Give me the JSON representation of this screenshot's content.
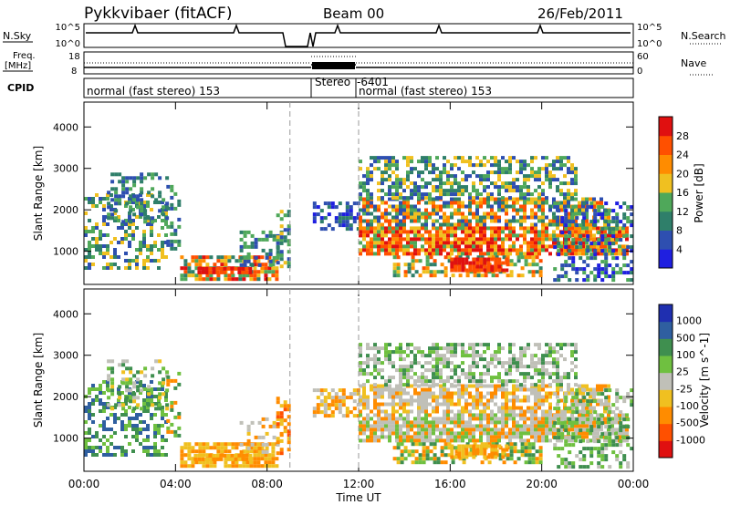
{
  "header": {
    "station": "Pykkvibaer (fitACF)",
    "beam": "Beam 00",
    "date": "26/Feb/2011"
  },
  "left_labels": {
    "nsky": "N.Sky",
    "freq_line1": "Freq.",
    "freq_line2": "[MHz]",
    "cpid": "CPID"
  },
  "right_labels": {
    "nsearch": "N.Search",
    "nave": "Nave"
  },
  "ticks": {
    "nsky": [
      "10^5",
      "10^0"
    ],
    "nsearch": [
      "10^5",
      "10^0"
    ],
    "freq": [
      "18",
      "8"
    ],
    "nave": [
      "60",
      "0"
    ]
  },
  "cpid_segments": [
    {
      "text": "normal (fast stereo) 153"
    },
    {
      "text": "Stereo"
    },
    {
      "text": "-6401"
    },
    {
      "text": "normal (fast stereo) 153"
    }
  ],
  "colors": {
    "power": [
      "#1f1fe0",
      "#2e4fb0",
      "#2f7f6a",
      "#4fa85a",
      "#f0c020",
      "#ff8c00",
      "#ff5000",
      "#e01010"
    ],
    "velocity": [
      "#e01010",
      "#ff5000",
      "#ff8c00",
      "#f0c020",
      "#c0c0b8",
      "#6fc040",
      "#3f8f4f",
      "#2f5fa0",
      "#1f2fb0"
    ]
  },
  "chart_data": [
    {
      "type": "heatmap",
      "title": "Power",
      "ylabel": "Slant Range [km]",
      "xlabel": "Time UT",
      "x_ticks": [
        "00:00",
        "04:00",
        "08:00",
        "12:00",
        "16:00",
        "20:00",
        "00:00"
      ],
      "y_ticks": [
        1000,
        2000,
        3000,
        4000
      ],
      "ylim": [
        200,
        4600
      ],
      "xlim_hours": [
        0,
        24
      ],
      "colorbar_label": "Power [dB]",
      "colorbar_ticks": [
        4,
        8,
        12,
        16,
        20,
        24,
        28
      ]
    },
    {
      "type": "heatmap",
      "title": "Velocity",
      "ylabel": "Slant Range [km]",
      "xlabel": "Time UT",
      "x_ticks": [
        "00:00",
        "04:00",
        "08:00",
        "12:00",
        "16:00",
        "20:00",
        "00:00"
      ],
      "y_ticks": [
        1000,
        2000,
        3000,
        4000
      ],
      "ylim": [
        200,
        4600
      ],
      "xlim_hours": [
        0,
        24
      ],
      "colorbar_label": "Velocity [m s^-1]",
      "colorbar_ticks": [
        1000,
        500,
        100,
        25,
        -25,
        -100,
        -500,
        -1000
      ]
    }
  ]
}
